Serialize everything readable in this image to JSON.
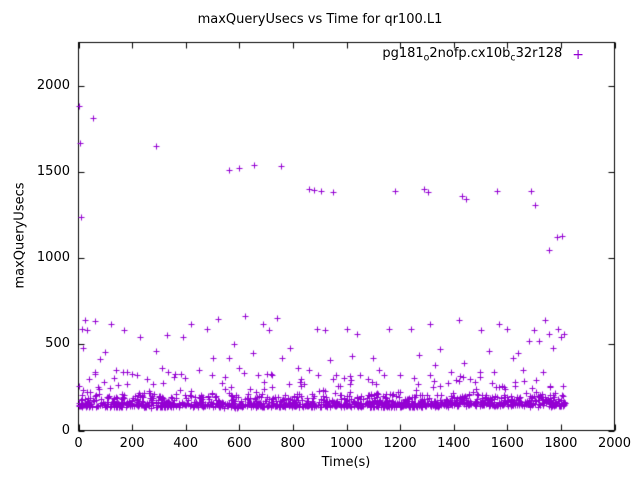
{
  "chart_data": {
    "type": "scatter",
    "title": "maxQueryUsecs vs Time for qr100.L1",
    "xlabel": "Time(s)",
    "ylabel": "maxQueryUsecs",
    "xlim": [
      0,
      2000
    ],
    "ylim": [
      0,
      2250
    ],
    "xticks": [
      0,
      200,
      400,
      600,
      800,
      1000,
      1200,
      1400,
      1600,
      1800,
      2000
    ],
    "yticks": [
      0,
      500,
      1000,
      1500,
      2000
    ],
    "grid": false,
    "legend_position": "top-right-inside",
    "marker": "plus",
    "color": "#9400D3",
    "series_name": "pg181o2nofp.cx10bc32r128",
    "legend_parts": [
      {
        "text": "pg181"
      },
      {
        "text": "o",
        "sub": true
      },
      {
        "text": "2nofp.cx10b"
      },
      {
        "text": "c",
        "sub": true
      },
      {
        "text": "32r128"
      }
    ],
    "legend_marker": "+",
    "outliers": [
      [
        3,
        1880
      ],
      [
        6,
        1665
      ],
      [
        9,
        1240
      ],
      [
        12,
        590
      ],
      [
        55,
        1810
      ],
      [
        290,
        1650
      ],
      [
        560,
        1510
      ],
      [
        600,
        1520
      ],
      [
        655,
        1540
      ],
      [
        755,
        1535
      ],
      [
        860,
        1400
      ],
      [
        880,
        1395
      ],
      [
        905,
        1390
      ],
      [
        950,
        1385
      ],
      [
        1180,
        1390
      ],
      [
        1290,
        1400
      ],
      [
        1305,
        1385
      ],
      [
        1430,
        1360
      ],
      [
        1445,
        1345
      ],
      [
        1560,
        1390
      ],
      [
        1690,
        1390
      ],
      [
        1705,
        1310
      ],
      [
        1755,
        1045
      ],
      [
        1785,
        1120
      ],
      [
        1805,
        1130
      ]
    ],
    "mid_points": [
      [
        15,
        480
      ],
      [
        25,
        640
      ],
      [
        30,
        585
      ],
      [
        40,
        300
      ],
      [
        60,
        635
      ],
      [
        80,
        415
      ],
      [
        100,
        455
      ],
      [
        120,
        620
      ],
      [
        140,
        350
      ],
      [
        170,
        580
      ],
      [
        200,
        330
      ],
      [
        230,
        540
      ],
      [
        255,
        300
      ],
      [
        290,
        460
      ],
      [
        310,
        360
      ],
      [
        330,
        555
      ],
      [
        360,
        330
      ],
      [
        390,
        545
      ],
      [
        420,
        620
      ],
      [
        450,
        350
      ],
      [
        480,
        590
      ],
      [
        500,
        420
      ],
      [
        520,
        645
      ],
      [
        545,
        310
      ],
      [
        560,
        420
      ],
      [
        580,
        500
      ],
      [
        600,
        360
      ],
      [
        620,
        665
      ],
      [
        650,
        450
      ],
      [
        670,
        320
      ],
      [
        690,
        615
      ],
      [
        710,
        585
      ],
      [
        740,
        650
      ],
      [
        760,
        420
      ],
      [
        790,
        480
      ],
      [
        820,
        360
      ],
      [
        830,
        300
      ],
      [
        860,
        350
      ],
      [
        890,
        590
      ],
      [
        920,
        580
      ],
      [
        940,
        410
      ],
      [
        960,
        320
      ],
      [
        1000,
        590
      ],
      [
        1020,
        430
      ],
      [
        1040,
        560
      ],
      [
        1080,
        300
      ],
      [
        1100,
        420
      ],
      [
        1120,
        350
      ],
      [
        1160,
        590
      ],
      [
        1200,
        320
      ],
      [
        1240,
        590
      ],
      [
        1270,
        440
      ],
      [
        1310,
        620
      ],
      [
        1330,
        380
      ],
      [
        1350,
        470
      ],
      [
        1390,
        340
      ],
      [
        1420,
        640
      ],
      [
        1440,
        390
      ],
      [
        1460,
        300
      ],
      [
        1500,
        580
      ],
      [
        1530,
        460
      ],
      [
        1550,
        340
      ],
      [
        1570,
        620
      ],
      [
        1600,
        590
      ],
      [
        1620,
        420
      ],
      [
        1640,
        450
      ],
      [
        1660,
        350
      ],
      [
        1680,
        520
      ],
      [
        1700,
        580
      ],
      [
        1720,
        520
      ],
      [
        1740,
        640
      ],
      [
        1755,
        560
      ],
      [
        1770,
        480
      ],
      [
        1790,
        590
      ],
      [
        1800,
        540
      ],
      [
        1810,
        560
      ]
    ],
    "dense_band": {
      "count": 1150,
      "x_range": [
        0,
        1815
      ],
      "y_range": [
        130,
        260
      ],
      "note": "dense cluster of latency samples along the baseline"
    },
    "sub_band": {
      "count": 170,
      "x_range": [
        0,
        1815
      ],
      "y_range": [
        195,
        340
      ],
      "note": "sparser layer of samples just above the dense band"
    }
  }
}
